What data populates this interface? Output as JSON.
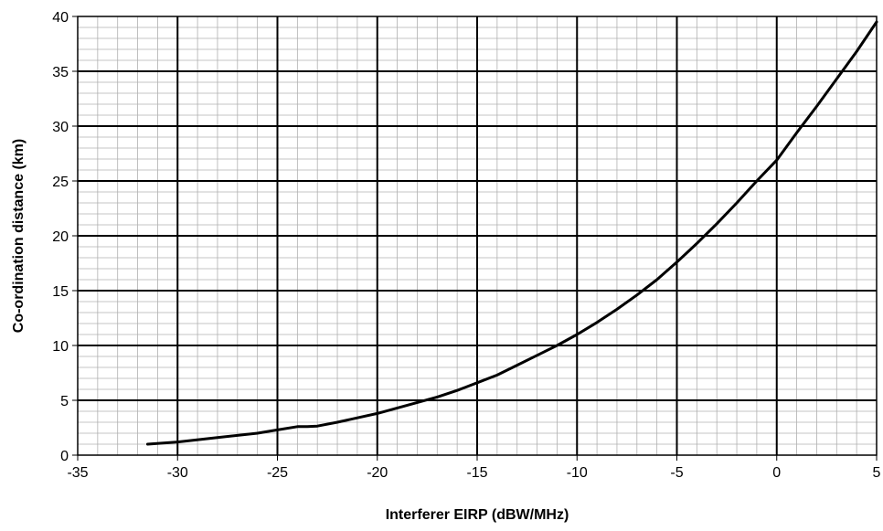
{
  "chart_data": {
    "type": "line",
    "title": "",
    "xlabel": "Interferer EIRP (dBW/MHz)",
    "ylabel": "Co-ordination distance (km)",
    "xlim": [
      -35,
      5
    ],
    "ylim": [
      0,
      40
    ],
    "x_major_ticks": [
      -35,
      -30,
      -25,
      -20,
      -15,
      -10,
      -5,
      0,
      5
    ],
    "y_major_ticks": [
      0,
      5,
      10,
      15,
      20,
      25,
      30,
      35,
      40
    ],
    "x_tick_labels": [
      "-35",
      "-30",
      "-25",
      "-20",
      "-15",
      "-10",
      "-5",
      "0",
      "5"
    ],
    "y_tick_labels": [
      "0",
      "5",
      "10",
      "15",
      "20",
      "25",
      "30",
      "35",
      "40"
    ],
    "x_minor_step": 1,
    "y_minor_step": 1,
    "grid": true,
    "legend": "none",
    "line_color": "#000000",
    "series": [
      {
        "x": [
          -31.5,
          -30,
          -28,
          -26,
          -25,
          -24,
          -23.5,
          -23,
          -22,
          -21,
          -20,
          -19,
          -18,
          -17,
          -16,
          -15,
          -14,
          -13,
          -12,
          -11,
          -10,
          -9,
          -8,
          -7,
          -6,
          -5,
          -4,
          -3,
          -2,
          -1,
          0,
          1,
          2,
          3,
          4,
          5
        ],
        "y": [
          1.0,
          1.2,
          1.6,
          2.0,
          2.3,
          2.6,
          2.6,
          2.65,
          3.0,
          3.4,
          3.8,
          4.3,
          4.8,
          5.3,
          5.9,
          6.6,
          7.3,
          8.2,
          9.1,
          10.0,
          11.0,
          12.1,
          13.3,
          14.6,
          16.0,
          17.6,
          19.3,
          21.1,
          23.0,
          25.0,
          26.9,
          29.4,
          31.8,
          34.3,
          36.8,
          39.5
        ]
      }
    ]
  }
}
